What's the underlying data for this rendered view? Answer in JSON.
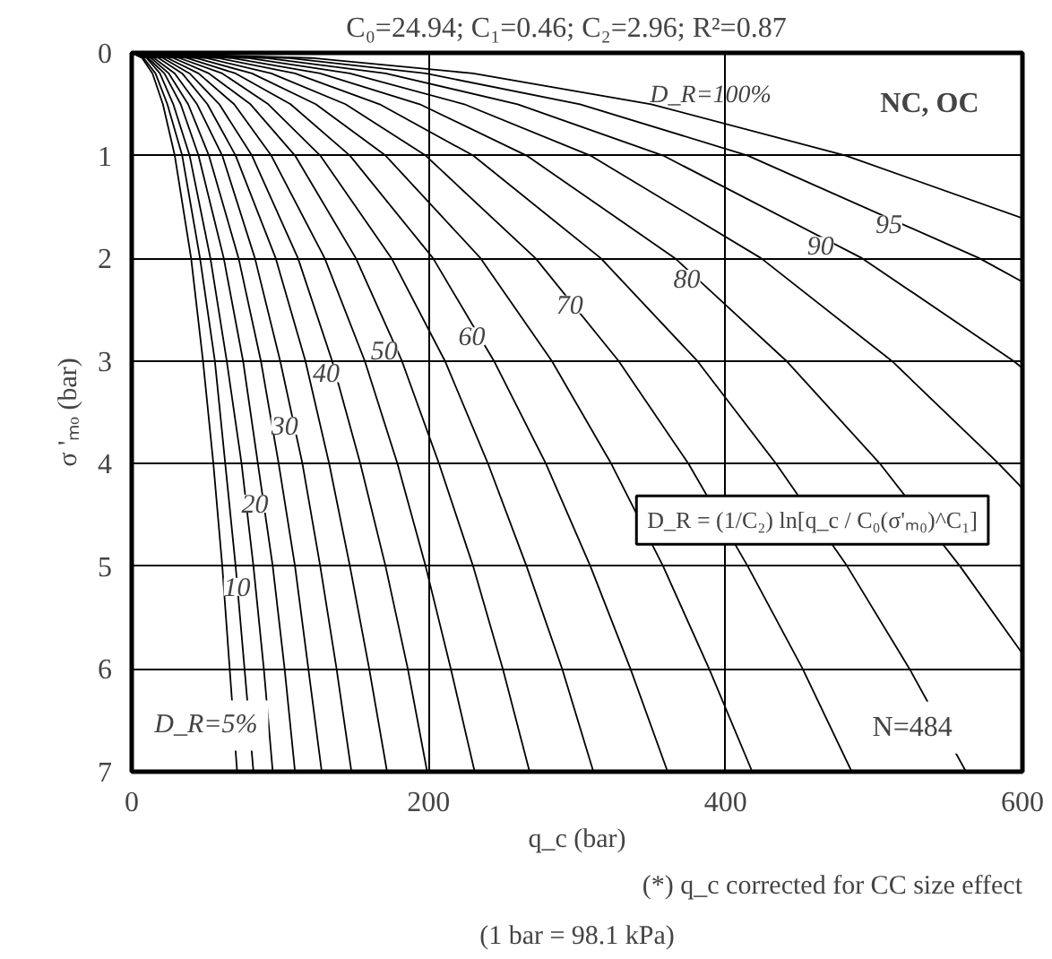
{
  "chart_data": {
    "type": "line",
    "title": "C₀=24.94;  C₁=0.46;  C₂=2.96;  R²=0.87",
    "xlabel": "q_c (bar)",
    "ylabel": "σ 'ₘₒ (bar)",
    "xlim": [
      0,
      600
    ],
    "xticks": [
      0,
      200,
      400,
      600
    ],
    "ylim": [
      7,
      0
    ],
    "yticks": [
      0,
      1,
      2,
      3,
      4,
      5,
      6,
      7
    ],
    "grid": true,
    "marker": "none",
    "line_style": "solid",
    "series": [
      {
        "color": "#000000",
        "x": [
          0,
          7,
          14,
          21,
          29,
          40,
          48,
          55,
          61,
          66,
          71
        ],
        "values": [
          0,
          0.05,
          0.2,
          0.5,
          1,
          2,
          3,
          4,
          5,
          6,
          7
        ]
      },
      {
        "color": "#000000",
        "x": [
          0,
          8,
          16,
          24,
          34,
          46,
          56,
          63,
          70,
          76,
          82
        ],
        "values": [
          0,
          0.05,
          0.2,
          0.5,
          1,
          2,
          3,
          4,
          5,
          6,
          7
        ]
      },
      {
        "color": "#000000",
        "x": [
          0,
          10,
          19,
          28,
          39,
          53,
          64,
          74,
          82,
          89,
          95
        ],
        "values": [
          0,
          0.05,
          0.2,
          0.5,
          1,
          2,
          3,
          4,
          5,
          6,
          7
        ]
      },
      {
        "color": "#000000",
        "x": [
          0,
          11,
          22,
          33,
          45,
          62,
          75,
          85,
          95,
          103,
          110
        ],
        "values": [
          0,
          0.05,
          0.2,
          0.5,
          1,
          2,
          3,
          4,
          5,
          6,
          7
        ]
      },
      {
        "color": "#000000",
        "x": [
          0,
          13,
          25,
          38,
          52,
          72,
          87,
          99,
          110,
          119,
          128
        ],
        "values": [
          0,
          0.05,
          0.2,
          0.5,
          1,
          2,
          3,
          4,
          5,
          6,
          7
        ]
      },
      {
        "color": "#000000",
        "x": [
          0,
          15,
          29,
          44,
          61,
          83,
          100,
          115,
          127,
          138,
          148
        ],
        "values": [
          0,
          0.05,
          0.2,
          0.5,
          1,
          2,
          3,
          4,
          5,
          6,
          7
        ]
      },
      {
        "color": "#000000",
        "x": [
          0,
          18,
          34,
          51,
          70,
          97,
          117,
          133,
          147,
          160,
          172
        ],
        "values": [
          0,
          0.05,
          0.2,
          0.5,
          1,
          2,
          3,
          4,
          5,
          6,
          7
        ]
      },
      {
        "color": "#000000",
        "x": [
          0,
          21,
          39,
          59,
          81,
          112,
          135,
          154,
          171,
          186,
          199
        ],
        "values": [
          0,
          0.05,
          0.2,
          0.5,
          1,
          2,
          3,
          4,
          5,
          6,
          7
        ]
      },
      {
        "color": "#000000",
        "x": [
          0,
          24,
          45,
          69,
          94,
          130,
          157,
          179,
          198,
          215,
          231
        ],
        "values": [
          0,
          0.05,
          0.2,
          0.5,
          1,
          2,
          3,
          4,
          5,
          6,
          7
        ]
      },
      {
        "color": "#000000",
        "x": [
          0,
          28,
          52,
          80,
          110,
          151,
          182,
          207,
          230,
          250,
          268
        ],
        "values": [
          0,
          0.05,
          0.2,
          0.5,
          1,
          2,
          3,
          4,
          5,
          6,
          7
        ]
      },
      {
        "color": "#000000",
        "x": [
          0,
          32,
          61,
          92,
          127,
          175,
          211,
          240,
          266,
          290,
          311
        ],
        "values": [
          0,
          0.05,
          0.2,
          0.5,
          1,
          2,
          3,
          4,
          5,
          6,
          7
        ]
      },
      {
        "color": "#000000",
        "x": [
          0,
          37,
          70,
          107,
          147,
          203,
          244,
          279,
          309,
          336,
          361
        ],
        "values": [
          0,
          0.05,
          0.2,
          0.5,
          1,
          2,
          3,
          4,
          5,
          6,
          7
        ]
      },
      {
        "color": "#000000",
        "x": [
          0,
          43,
          81,
          124,
          171,
          235,
          283,
          323,
          358,
          389,
          418
        ],
        "values": [
          0,
          0.05,
          0.2,
          0.5,
          1,
          2,
          3,
          4,
          5,
          6,
          7
        ]
      },
      {
        "color": "#000000",
        "x": [
          0,
          50,
          94,
          144,
          198,
          272,
          328,
          375,
          415,
          452,
          485
        ],
        "values": [
          0,
          0.05,
          0.2,
          0.5,
          1,
          2,
          3,
          4,
          5,
          6,
          7
        ]
      },
      {
        "color": "#000000",
        "x": [
          0,
          58,
          110,
          167,
          230,
          316,
          381,
          434,
          482,
          524,
          562
        ],
        "values": [
          0,
          0.05,
          0.2,
          0.5,
          1,
          2,
          3,
          4,
          5,
          6,
          7
        ]
      },
      {
        "color": "#000000",
        "x": [
          0,
          67,
          127,
          194,
          266,
          366,
          441,
          504,
          558,
          600
        ],
        "values": [
          0,
          0.05,
          0.2,
          0.5,
          1,
          2,
          3,
          4,
          5,
          5.85
        ]
      },
      {
        "color": "#000000",
        "x": [
          0,
          78,
          147,
          224,
          309,
          424,
          512,
          584,
          600
        ],
        "values": [
          0,
          0.05,
          0.2,
          0.5,
          1,
          2,
          3,
          4,
          4.24
        ]
      },
      {
        "color": "#000000",
        "x": [
          0,
          90,
          171,
          260,
          358,
          492,
          594,
          600
        ],
        "values": [
          0,
          0.05,
          0.2,
          0.5,
          1,
          2,
          3,
          3.07
        ]
      },
      {
        "color": "#000000",
        "x": [
          0,
          105,
          198,
          302,
          415,
          571,
          600
        ],
        "values": [
          0,
          0.05,
          0.2,
          0.5,
          1,
          2,
          2.23
        ]
      },
      {
        "color": "#000000",
        "x": [
          0,
          121,
          230,
          350,
          481,
          600
        ],
        "values": [
          0,
          0.05,
          0.2,
          0.5,
          1,
          1.61
        ]
      }
    ],
    "annotations": [
      "D_R=100%",
      {
        "text": "95",
        "x": 510,
        "y": 1.67
      },
      {
        "text": "90",
        "x": 464,
        "y": 1.88
      },
      {
        "text": "80",
        "x": 374,
        "y": 2.2
      },
      {
        "text": "70",
        "x": 295,
        "y": 2.45
      },
      {
        "text": "60",
        "x": 229,
        "y": 2.76
      },
      {
        "text": "50",
        "x": 170,
        "y": 2.9
      },
      {
        "text": "40",
        "x": 131,
        "y": 3.12
      },
      {
        "text": "30",
        "x": 103,
        "y": 3.63
      },
      {
        "text": "20",
        "x": 83,
        "y": 4.39
      },
      {
        "text": "10",
        "x": 71,
        "y": 5.2
      },
      "D_R=5%",
      "NC, OC",
      "D_R = (1/C₂) ln[q_c / C₀(σ'ₘ₀)^C₁]",
      "N=484",
      "(*) q_c corrected for CC size effect",
      "(1 bar = 98.1 kPa)"
    ]
  }
}
